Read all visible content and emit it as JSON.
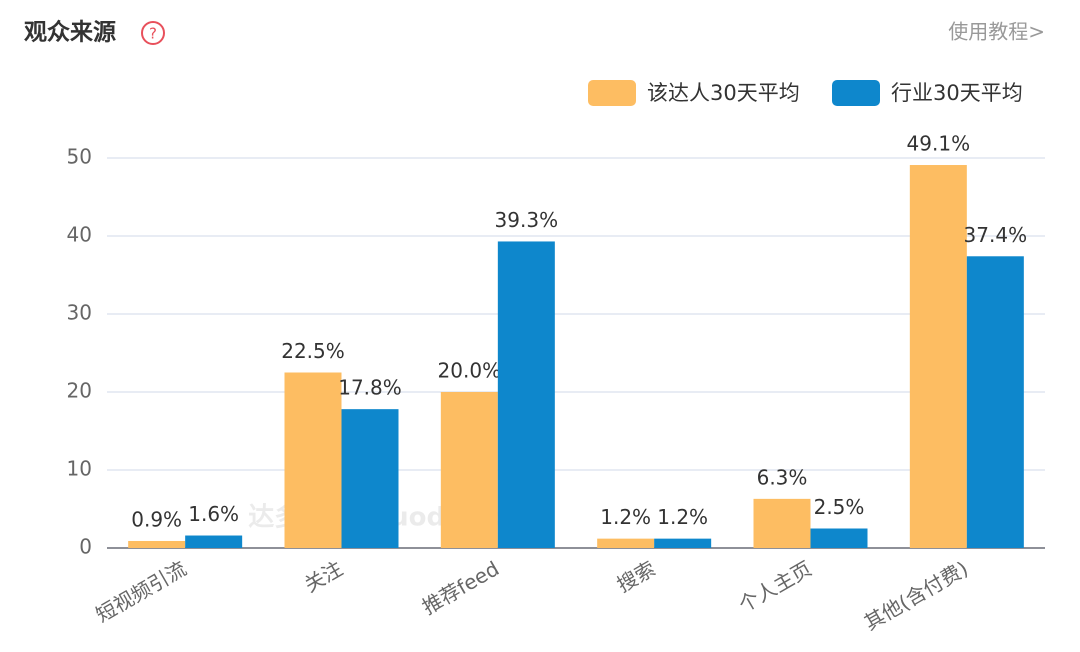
{
  "header": {
    "title": "观众来源",
    "help": "?",
    "link": "使用教程>"
  },
  "watermark": "达多多 daduoduo.com",
  "chart_data": {
    "type": "bar",
    "categories": [
      "短视频引流",
      "关注",
      "推荐feed",
      "搜索",
      "个人主页",
      "其他(含付费)"
    ],
    "series": [
      {
        "name": "该达人30天平均",
        "color": "#fdbd62",
        "values": [
          0.9,
          22.5,
          20.0,
          1.2,
          6.3,
          49.1
        ],
        "value_labels": [
          "0.9%",
          "22.5%",
          "20.0%",
          "1.2%",
          "6.3%",
          "49.1%"
        ]
      },
      {
        "name": "行业30天平均",
        "color": "#0e87cc",
        "values": [
          1.6,
          17.8,
          39.3,
          1.2,
          2.5,
          37.4
        ],
        "value_labels": [
          "1.6%",
          "17.8%",
          "39.3%",
          "1.2%",
          "2.5%",
          "37.4%"
        ]
      }
    ],
    "ylim": [
      0,
      50
    ],
    "yticks": [
      0,
      10,
      20,
      30,
      40,
      50
    ],
    "grid": true,
    "legend": "top-right"
  }
}
